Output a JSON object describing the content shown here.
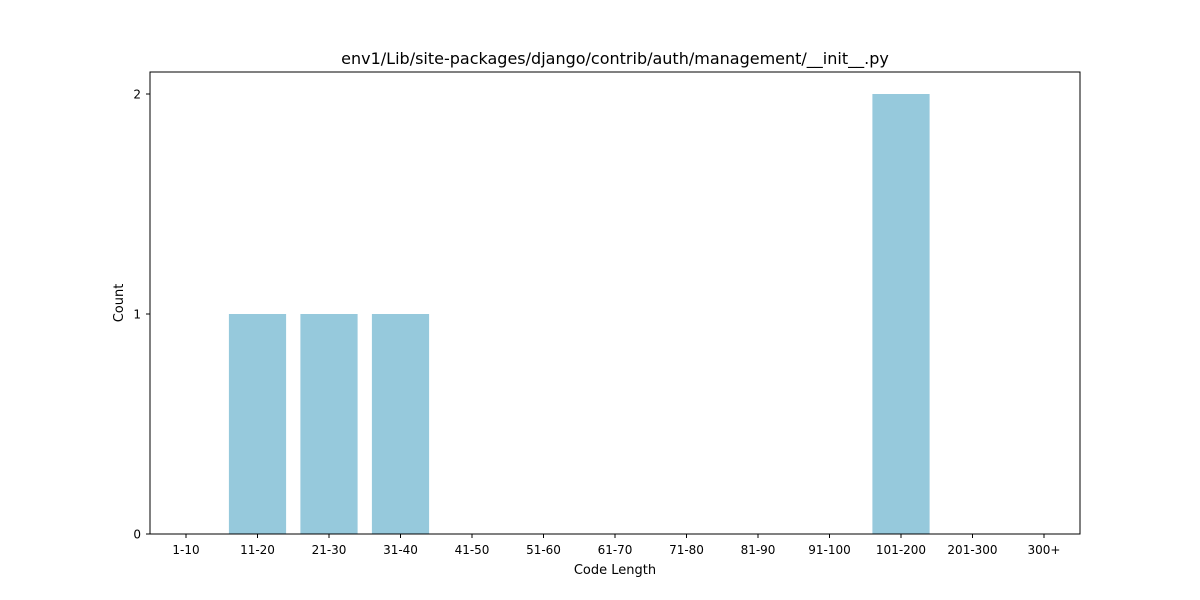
{
  "chart_data": {
    "type": "bar",
    "title": "env1/Lib/site-packages/django/contrib/auth/management/__init__.py",
    "xlabel": "Code Length",
    "ylabel": "Count",
    "categories": [
      "1-10",
      "11-20",
      "21-30",
      "31-40",
      "41-50",
      "51-60",
      "61-70",
      "71-80",
      "81-90",
      "91-100",
      "101-200",
      "201-300",
      "300+"
    ],
    "values": [
      0,
      1,
      1,
      1,
      0,
      0,
      0,
      0,
      0,
      0,
      2,
      0,
      0
    ],
    "ylim": [
      0,
      2.1
    ],
    "yticks": [
      0,
      1,
      2
    ],
    "grid": false,
    "bar_color": "#96c9dc"
  }
}
